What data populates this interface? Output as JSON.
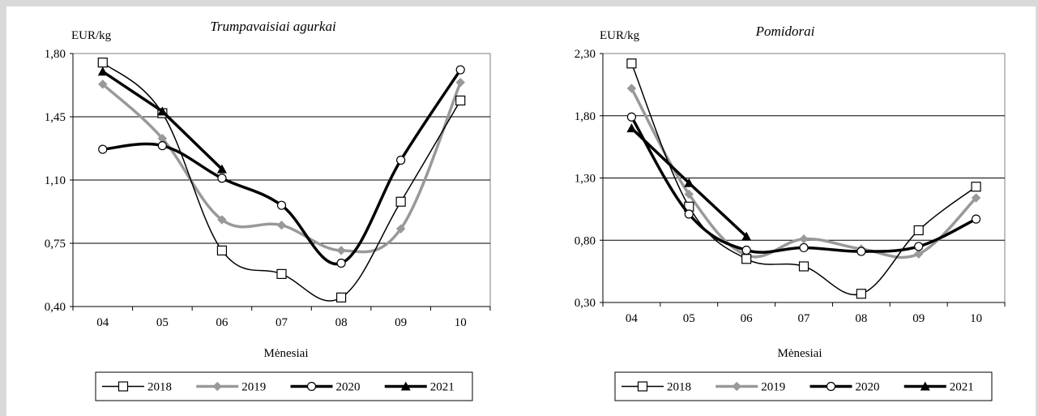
{
  "chart_data": [
    {
      "type": "line",
      "title": "Trumpavaisiai agurkai",
      "ylabel": "EUR/kg",
      "xlabel": "Mėnesiai",
      "categories": [
        "04",
        "05",
        "06",
        "07",
        "08",
        "09",
        "10"
      ],
      "yticks": [
        "0,40",
        "0,75",
        "1,10",
        "1,45",
        "1,80"
      ],
      "ylim": [
        0.4,
        1.8
      ],
      "grid": true,
      "legend_position": "bottom",
      "series": [
        {
          "name": "2018",
          "values": [
            1.75,
            1.47,
            0.71,
            0.58,
            0.45,
            0.98,
            1.54
          ]
        },
        {
          "name": "2019",
          "values": [
            1.63,
            1.33,
            0.88,
            0.85,
            0.71,
            0.83,
            1.64
          ]
        },
        {
          "name": "2020",
          "values": [
            1.27,
            1.29,
            1.11,
            0.96,
            0.64,
            1.21,
            1.71
          ]
        },
        {
          "name": "2021",
          "values": [
            1.7,
            1.48,
            1.16,
            null,
            null,
            null,
            null
          ]
        }
      ]
    },
    {
      "type": "line",
      "title": "Pomidorai",
      "ylabel": "EUR/kg",
      "xlabel": "Mėnesiai",
      "categories": [
        "04",
        "05",
        "06",
        "07",
        "08",
        "09",
        "10"
      ],
      "yticks": [
        "0,30",
        "0,80",
        "1,30",
        "1,80",
        "2,30"
      ],
      "ylim": [
        0.3,
        2.3
      ],
      "grid": true,
      "legend_position": "bottom",
      "series": [
        {
          "name": "2018",
          "values": [
            2.22,
            1.07,
            0.65,
            0.59,
            0.37,
            0.88,
            1.23
          ]
        },
        {
          "name": "2019",
          "values": [
            2.02,
            1.17,
            0.68,
            0.81,
            0.73,
            0.69,
            1.14
          ]
        },
        {
          "name": "2020",
          "values": [
            1.79,
            1.01,
            0.72,
            0.74,
            0.71,
            0.75,
            0.97
          ]
        },
        {
          "name": "2021",
          "values": [
            1.7,
            1.26,
            0.83,
            null,
            null,
            null,
            null
          ]
        }
      ]
    }
  ],
  "series_styles": {
    "2018": {
      "color": "#000000",
      "width": 1.5,
      "marker": "square"
    },
    "2019": {
      "color": "#999999",
      "width": 3.5,
      "marker": "diamond"
    },
    "2020": {
      "color": "#000000",
      "width": 3.5,
      "marker": "circle"
    },
    "2021": {
      "color": "#000000",
      "width": 3.5,
      "marker": "triangle"
    }
  }
}
